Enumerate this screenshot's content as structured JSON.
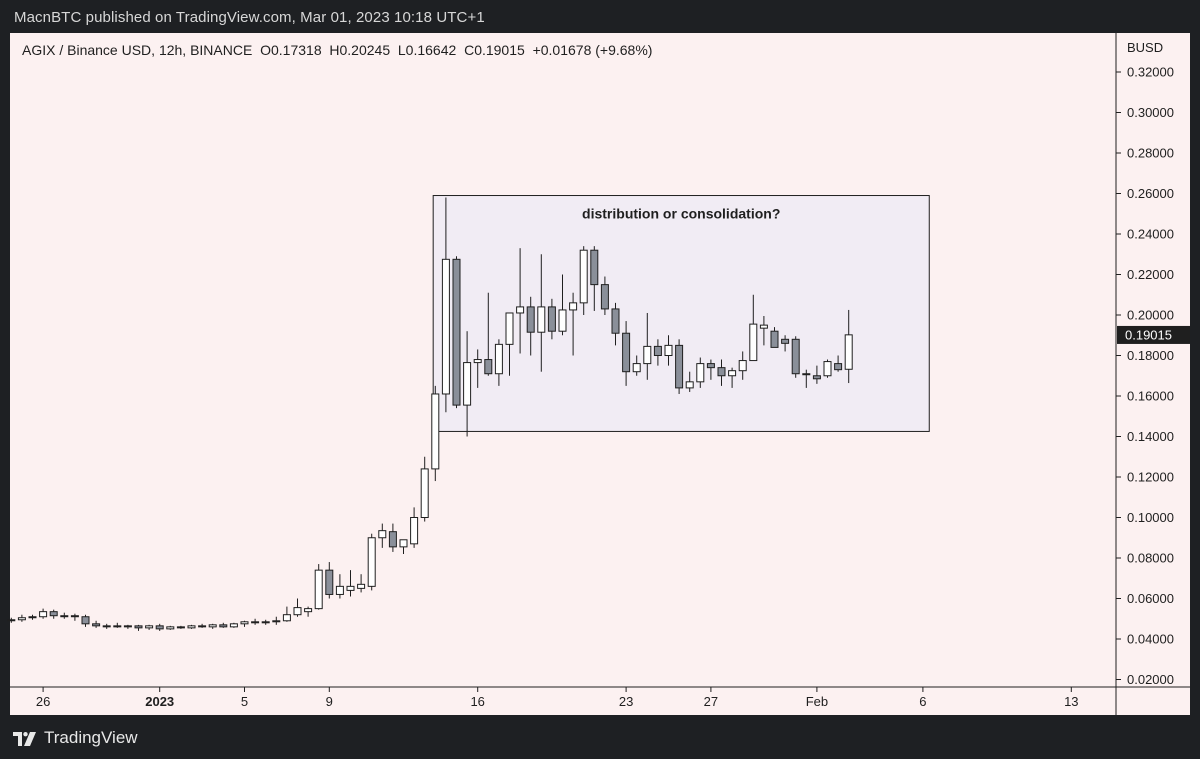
{
  "header": {
    "published": "MacnBTC published on TradingView.com, Mar 01, 2023 10:18 UTC+1"
  },
  "legend": {
    "symbol": "AGIX / Binance USD, 12h, BINANCE",
    "open": "O0.17318",
    "high": "H0.20245",
    "low": "L0.16642",
    "close": "C0.19015",
    "change": "+0.01678 (+9.68%)"
  },
  "footer": {
    "brand": "TradingView",
    "logo_icon": "tradingview-logo-icon"
  },
  "colors": {
    "up_body": "#ffffff",
    "down_body": "#8a8f99",
    "wick": "#1f1f1f",
    "box_fill": "#f1ecf4",
    "box_stroke": "#1f1f1f",
    "price_tag_bg": "#1f1f1f"
  },
  "chart_data": {
    "type": "candlestick",
    "title": "AGIX / Binance USD, 12h, BINANCE",
    "currency_label": "BUSD",
    "ylim": [
      0.02,
      0.325
    ],
    "y_ticks": [
      "0.32000",
      "0.30000",
      "0.28000",
      "0.26000",
      "0.24000",
      "0.22000",
      "0.20000",
      "0.18000",
      "0.16000",
      "0.14000",
      "0.12000",
      "0.10000",
      "0.08000",
      "0.06000",
      "0.04000",
      "0.02000"
    ],
    "x_start": "2022-12-23",
    "bar_interval_hours": 12,
    "x_ticks": [
      {
        "label": "26",
        "bar": 3
      },
      {
        "label": "2023",
        "bar": 14
      },
      {
        "label": "5",
        "bar": 22
      },
      {
        "label": "9",
        "bar": 30
      },
      {
        "label": "16",
        "bar": 44
      },
      {
        "label": "23",
        "bar": 58
      },
      {
        "label": "27",
        "bar": 66
      },
      {
        "label": "Feb",
        "bar": 76
      },
      {
        "label": "6",
        "bar": 86
      },
      {
        "label": "13",
        "bar": 100
      }
    ],
    "last_price": "0.19015",
    "annotation": {
      "text": "distribution or consolidation?",
      "x_bar_range": [
        39.8,
        86.6
      ],
      "y_range": [
        0.1425,
        0.259
      ]
    },
    "ohlc": [
      [
        0.0495,
        0.0505,
        0.048,
        0.0495
      ],
      [
        0.0495,
        0.052,
        0.0485,
        0.0505
      ],
      [
        0.0505,
        0.052,
        0.0495,
        0.051
      ],
      [
        0.051,
        0.055,
        0.05,
        0.0535
      ],
      [
        0.0535,
        0.0545,
        0.05,
        0.0515
      ],
      [
        0.0515,
        0.053,
        0.05,
        0.0515
      ],
      [
        0.0515,
        0.0525,
        0.049,
        0.051
      ],
      [
        0.051,
        0.052,
        0.046,
        0.0475
      ],
      [
        0.0475,
        0.049,
        0.0455,
        0.0465
      ],
      [
        0.0465,
        0.0475,
        0.045,
        0.0465
      ],
      [
        0.0465,
        0.048,
        0.0455,
        0.046
      ],
      [
        0.046,
        0.047,
        0.045,
        0.0465
      ],
      [
        0.0465,
        0.047,
        0.044,
        0.0455
      ],
      [
        0.0455,
        0.047,
        0.0445,
        0.0465
      ],
      [
        0.0465,
        0.0475,
        0.044,
        0.045
      ],
      [
        0.045,
        0.0465,
        0.0445,
        0.046
      ],
      [
        0.046,
        0.0465,
        0.045,
        0.0455
      ],
      [
        0.0455,
        0.047,
        0.045,
        0.0465
      ],
      [
        0.0465,
        0.0475,
        0.0455,
        0.046
      ],
      [
        0.046,
        0.0475,
        0.045,
        0.047
      ],
      [
        0.047,
        0.048,
        0.0455,
        0.046
      ],
      [
        0.046,
        0.048,
        0.0455,
        0.0475
      ],
      [
        0.0475,
        0.049,
        0.046,
        0.0485
      ],
      [
        0.0485,
        0.05,
        0.047,
        0.048
      ],
      [
        0.048,
        0.0495,
        0.047,
        0.0485
      ],
      [
        0.0485,
        0.051,
        0.047,
        0.049
      ],
      [
        0.049,
        0.056,
        0.0485,
        0.052
      ],
      [
        0.052,
        0.06,
        0.051,
        0.0555
      ],
      [
        0.0535,
        0.056,
        0.051,
        0.055
      ],
      [
        0.055,
        0.077,
        0.0545,
        0.074
      ],
      [
        0.074,
        0.078,
        0.06,
        0.062
      ],
      [
        0.062,
        0.072,
        0.06,
        0.066
      ],
      [
        0.064,
        0.074,
        0.061,
        0.066
      ],
      [
        0.065,
        0.072,
        0.063,
        0.067
      ],
      [
        0.066,
        0.092,
        0.064,
        0.09
      ],
      [
        0.09,
        0.097,
        0.085,
        0.0935
      ],
      [
        0.093,
        0.097,
        0.083,
        0.0855
      ],
      [
        0.0855,
        0.088,
        0.082,
        0.089
      ],
      [
        0.087,
        0.105,
        0.085,
        0.1
      ],
      [
        0.1,
        0.13,
        0.098,
        0.124
      ],
      [
        0.124,
        0.165,
        0.118,
        0.161
      ],
      [
        0.161,
        0.258,
        0.152,
        0.2275
      ],
      [
        0.2275,
        0.229,
        0.154,
        0.1555
      ],
      [
        0.1555,
        0.192,
        0.14,
        0.1765
      ],
      [
        0.1765,
        0.183,
        0.164,
        0.178
      ],
      [
        0.178,
        0.211,
        0.17,
        0.171
      ],
      [
        0.171,
        0.188,
        0.165,
        0.1855
      ],
      [
        0.1855,
        0.201,
        0.17,
        0.201
      ],
      [
        0.201,
        0.233,
        0.181,
        0.204
      ],
      [
        0.204,
        0.209,
        0.18,
        0.1915
      ],
      [
        0.1915,
        0.23,
        0.172,
        0.204
      ],
      [
        0.204,
        0.208,
        0.188,
        0.192
      ],
      [
        0.192,
        0.22,
        0.19,
        0.2025
      ],
      [
        0.2025,
        0.211,
        0.18,
        0.206
      ],
      [
        0.206,
        0.234,
        0.2,
        0.232
      ],
      [
        0.232,
        0.234,
        0.202,
        0.215
      ],
      [
        0.215,
        0.219,
        0.2,
        0.203
      ],
      [
        0.203,
        0.206,
        0.185,
        0.191
      ],
      [
        0.191,
        0.197,
        0.165,
        0.172
      ],
      [
        0.172,
        0.18,
        0.17,
        0.176
      ],
      [
        0.176,
        0.201,
        0.168,
        0.1845
      ],
      [
        0.1845,
        0.188,
        0.175,
        0.18
      ],
      [
        0.18,
        0.19,
        0.175,
        0.185
      ],
      [
        0.185,
        0.188,
        0.161,
        0.164
      ],
      [
        0.164,
        0.172,
        0.162,
        0.167
      ],
      [
        0.167,
        0.179,
        0.164,
        0.176
      ],
      [
        0.176,
        0.178,
        0.168,
        0.174
      ],
      [
        0.174,
        0.178,
        0.165,
        0.17
      ],
      [
        0.17,
        0.174,
        0.164,
        0.1725
      ],
      [
        0.1725,
        0.182,
        0.168,
        0.1775
      ],
      [
        0.1775,
        0.21,
        0.178,
        0.1955
      ],
      [
        0.1935,
        0.1995,
        0.185,
        0.195
      ],
      [
        0.192,
        0.194,
        0.184,
        0.184
      ],
      [
        0.188,
        0.19,
        0.182,
        0.186
      ],
      [
        0.188,
        0.1895,
        0.169,
        0.171
      ],
      [
        0.171,
        0.173,
        0.164,
        0.1705
      ],
      [
        0.17,
        0.175,
        0.166,
        0.1685
      ],
      [
        0.17,
        0.178,
        0.169,
        0.177
      ],
      [
        0.176,
        0.18,
        0.172,
        0.173
      ],
      [
        0.1732,
        0.2025,
        0.1664,
        0.1902
      ]
    ]
  }
}
